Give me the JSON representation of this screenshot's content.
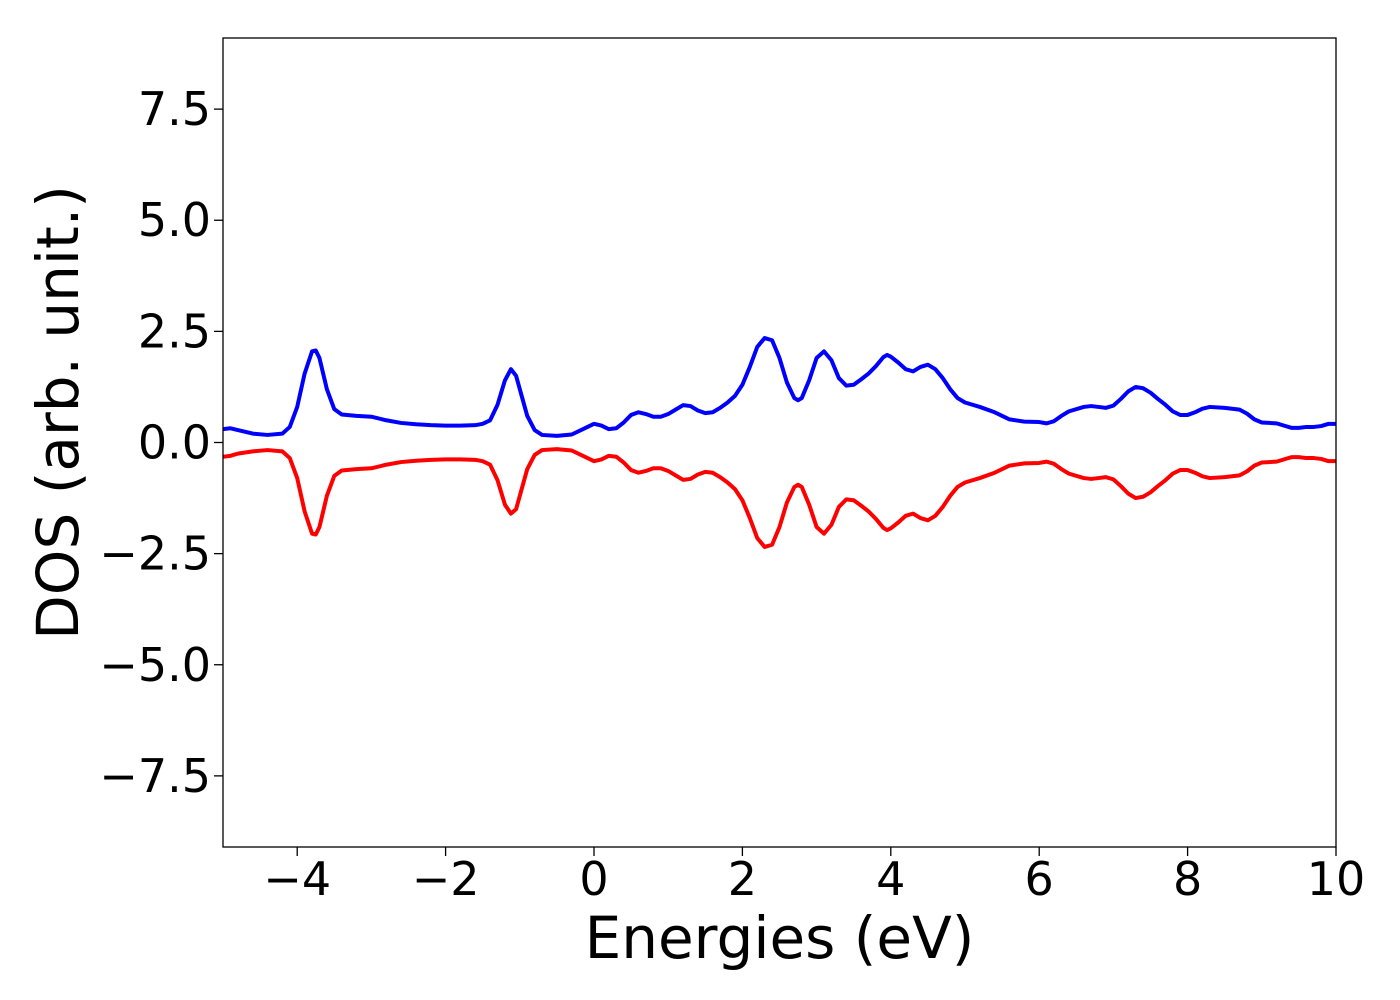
{
  "chart_data": {
    "type": "line",
    "title": "",
    "xlabel": "Energies (eV)",
    "ylabel": "DOS (arb. unit.)",
    "xlim": [
      -5,
      10
    ],
    "ylim": [
      -9.1,
      9.1
    ],
    "grid": false,
    "legend": "none",
    "x_ticks": [
      {
        "value": -4,
        "label": "−4"
      },
      {
        "value": -2,
        "label": "−2"
      },
      {
        "value": 0,
        "label": "0"
      },
      {
        "value": 2,
        "label": "2"
      },
      {
        "value": 4,
        "label": "4"
      },
      {
        "value": 6,
        "label": "6"
      },
      {
        "value": 8,
        "label": "8"
      },
      {
        "value": 10,
        "label": "10"
      }
    ],
    "y_ticks": [
      {
        "value": 7.5,
        "label": "7.5"
      },
      {
        "value": 5.0,
        "label": "5.0"
      },
      {
        "value": 2.5,
        "label": "2.5"
      },
      {
        "value": 0.0,
        "label": "0.0"
      },
      {
        "value": -2.5,
        "label": "−2.5"
      },
      {
        "value": -5.0,
        "label": "−5.0"
      },
      {
        "value": -7.5,
        "label": "−7.5"
      }
    ],
    "series": [
      {
        "color": "#0000ff",
        "points": [
          [
            -5.0,
            0.3
          ],
          [
            -4.9,
            0.32
          ],
          [
            -4.8,
            0.28
          ],
          [
            -4.6,
            0.2
          ],
          [
            -4.4,
            0.17
          ],
          [
            -4.2,
            0.2
          ],
          [
            -4.1,
            0.35
          ],
          [
            -4.0,
            0.8
          ],
          [
            -3.9,
            1.55
          ],
          [
            -3.8,
            2.05
          ],
          [
            -3.75,
            2.07
          ],
          [
            -3.7,
            1.9
          ],
          [
            -3.6,
            1.2
          ],
          [
            -3.5,
            0.75
          ],
          [
            -3.4,
            0.63
          ],
          [
            -3.2,
            0.6
          ],
          [
            -3.0,
            0.58
          ],
          [
            -2.8,
            0.5
          ],
          [
            -2.6,
            0.44
          ],
          [
            -2.4,
            0.41
          ],
          [
            -2.2,
            0.39
          ],
          [
            -2.0,
            0.38
          ],
          [
            -1.8,
            0.38
          ],
          [
            -1.6,
            0.39
          ],
          [
            -1.5,
            0.42
          ],
          [
            -1.4,
            0.5
          ],
          [
            -1.3,
            0.85
          ],
          [
            -1.2,
            1.4
          ],
          [
            -1.12,
            1.65
          ],
          [
            -1.05,
            1.5
          ],
          [
            -1.0,
            1.2
          ],
          [
            -0.9,
            0.6
          ],
          [
            -0.8,
            0.28
          ],
          [
            -0.7,
            0.17
          ],
          [
            -0.5,
            0.15
          ],
          [
            -0.3,
            0.18
          ],
          [
            -0.15,
            0.3
          ],
          [
            0.0,
            0.42
          ],
          [
            0.1,
            0.38
          ],
          [
            0.2,
            0.3
          ],
          [
            0.3,
            0.32
          ],
          [
            0.4,
            0.45
          ],
          [
            0.5,
            0.62
          ],
          [
            0.6,
            0.68
          ],
          [
            0.7,
            0.64
          ],
          [
            0.8,
            0.58
          ],
          [
            0.9,
            0.58
          ],
          [
            1.0,
            0.64
          ],
          [
            1.1,
            0.74
          ],
          [
            1.2,
            0.84
          ],
          [
            1.3,
            0.82
          ],
          [
            1.4,
            0.72
          ],
          [
            1.5,
            0.66
          ],
          [
            1.6,
            0.68
          ],
          [
            1.7,
            0.78
          ],
          [
            1.8,
            0.9
          ],
          [
            1.9,
            1.05
          ],
          [
            2.0,
            1.3
          ],
          [
            2.1,
            1.7
          ],
          [
            2.2,
            2.15
          ],
          [
            2.3,
            2.35
          ],
          [
            2.4,
            2.3
          ],
          [
            2.5,
            1.9
          ],
          [
            2.6,
            1.35
          ],
          [
            2.7,
            1.0
          ],
          [
            2.75,
            0.95
          ],
          [
            2.8,
            1.0
          ],
          [
            2.9,
            1.4
          ],
          [
            3.0,
            1.9
          ],
          [
            3.1,
            2.05
          ],
          [
            3.2,
            1.85
          ],
          [
            3.3,
            1.45
          ],
          [
            3.4,
            1.28
          ],
          [
            3.5,
            1.3
          ],
          [
            3.6,
            1.42
          ],
          [
            3.7,
            1.55
          ],
          [
            3.8,
            1.72
          ],
          [
            3.9,
            1.92
          ],
          [
            3.95,
            1.97
          ],
          [
            4.0,
            1.93
          ],
          [
            4.1,
            1.8
          ],
          [
            4.2,
            1.65
          ],
          [
            4.3,
            1.6
          ],
          [
            4.4,
            1.7
          ],
          [
            4.5,
            1.75
          ],
          [
            4.6,
            1.65
          ],
          [
            4.7,
            1.45
          ],
          [
            4.8,
            1.2
          ],
          [
            4.9,
            1.0
          ],
          [
            5.0,
            0.9
          ],
          [
            5.2,
            0.8
          ],
          [
            5.4,
            0.68
          ],
          [
            5.6,
            0.52
          ],
          [
            5.8,
            0.47
          ],
          [
            6.0,
            0.46
          ],
          [
            6.1,
            0.43
          ],
          [
            6.2,
            0.48
          ],
          [
            6.3,
            0.6
          ],
          [
            6.4,
            0.7
          ],
          [
            6.6,
            0.8
          ],
          [
            6.7,
            0.82
          ],
          [
            6.8,
            0.8
          ],
          [
            6.9,
            0.78
          ],
          [
            7.0,
            0.83
          ],
          [
            7.1,
            0.98
          ],
          [
            7.2,
            1.15
          ],
          [
            7.3,
            1.25
          ],
          [
            7.4,
            1.22
          ],
          [
            7.5,
            1.12
          ],
          [
            7.6,
            0.98
          ],
          [
            7.7,
            0.85
          ],
          [
            7.8,
            0.7
          ],
          [
            7.9,
            0.62
          ],
          [
            8.0,
            0.62
          ],
          [
            8.1,
            0.68
          ],
          [
            8.2,
            0.76
          ],
          [
            8.3,
            0.8
          ],
          [
            8.5,
            0.78
          ],
          [
            8.7,
            0.74
          ],
          [
            8.8,
            0.65
          ],
          [
            8.9,
            0.52
          ],
          [
            9.0,
            0.45
          ],
          [
            9.2,
            0.43
          ],
          [
            9.3,
            0.38
          ],
          [
            9.4,
            0.33
          ],
          [
            9.5,
            0.33
          ],
          [
            9.6,
            0.35
          ],
          [
            9.7,
            0.35
          ],
          [
            9.8,
            0.37
          ],
          [
            9.9,
            0.42
          ],
          [
            10.0,
            0.42
          ]
        ]
      },
      {
        "color": "#ff0000",
        "points": [
          [
            -5.0,
            -0.32
          ],
          [
            -4.9,
            -0.3
          ],
          [
            -4.8,
            -0.25
          ],
          [
            -4.6,
            -0.2
          ],
          [
            -4.4,
            -0.17
          ],
          [
            -4.2,
            -0.2
          ],
          [
            -4.1,
            -0.35
          ],
          [
            -4.0,
            -0.8
          ],
          [
            -3.9,
            -1.55
          ],
          [
            -3.8,
            -2.05
          ],
          [
            -3.75,
            -2.07
          ],
          [
            -3.7,
            -1.9
          ],
          [
            -3.6,
            -1.2
          ],
          [
            -3.5,
            -0.75
          ],
          [
            -3.4,
            -0.63
          ],
          [
            -3.2,
            -0.6
          ],
          [
            -3.0,
            -0.58
          ],
          [
            -2.8,
            -0.5
          ],
          [
            -2.6,
            -0.44
          ],
          [
            -2.4,
            -0.41
          ],
          [
            -2.2,
            -0.39
          ],
          [
            -2.0,
            -0.38
          ],
          [
            -1.8,
            -0.38
          ],
          [
            -1.6,
            -0.39
          ],
          [
            -1.5,
            -0.42
          ],
          [
            -1.4,
            -0.5
          ],
          [
            -1.3,
            -0.85
          ],
          [
            -1.2,
            -1.4
          ],
          [
            -1.12,
            -1.6
          ],
          [
            -1.05,
            -1.5
          ],
          [
            -1.0,
            -1.2
          ],
          [
            -0.9,
            -0.6
          ],
          [
            -0.8,
            -0.28
          ],
          [
            -0.7,
            -0.17
          ],
          [
            -0.5,
            -0.15
          ],
          [
            -0.3,
            -0.18
          ],
          [
            -0.15,
            -0.3
          ],
          [
            0.0,
            -0.42
          ],
          [
            0.1,
            -0.38
          ],
          [
            0.2,
            -0.3
          ],
          [
            0.3,
            -0.32
          ],
          [
            0.4,
            -0.45
          ],
          [
            0.5,
            -0.62
          ],
          [
            0.6,
            -0.68
          ],
          [
            0.7,
            -0.64
          ],
          [
            0.8,
            -0.58
          ],
          [
            0.9,
            -0.58
          ],
          [
            1.0,
            -0.64
          ],
          [
            1.1,
            -0.74
          ],
          [
            1.2,
            -0.84
          ],
          [
            1.3,
            -0.82
          ],
          [
            1.4,
            -0.72
          ],
          [
            1.5,
            -0.66
          ],
          [
            1.6,
            -0.68
          ],
          [
            1.7,
            -0.78
          ],
          [
            1.8,
            -0.9
          ],
          [
            1.9,
            -1.05
          ],
          [
            2.0,
            -1.3
          ],
          [
            2.1,
            -1.7
          ],
          [
            2.2,
            -2.15
          ],
          [
            2.3,
            -2.35
          ],
          [
            2.4,
            -2.3
          ],
          [
            2.5,
            -1.9
          ],
          [
            2.6,
            -1.35
          ],
          [
            2.7,
            -1.0
          ],
          [
            2.75,
            -0.95
          ],
          [
            2.8,
            -1.0
          ],
          [
            2.9,
            -1.4
          ],
          [
            3.0,
            -1.9
          ],
          [
            3.1,
            -2.05
          ],
          [
            3.2,
            -1.85
          ],
          [
            3.3,
            -1.45
          ],
          [
            3.4,
            -1.28
          ],
          [
            3.5,
            -1.3
          ],
          [
            3.6,
            -1.42
          ],
          [
            3.7,
            -1.55
          ],
          [
            3.8,
            -1.72
          ],
          [
            3.9,
            -1.92
          ],
          [
            3.95,
            -1.97
          ],
          [
            4.0,
            -1.93
          ],
          [
            4.1,
            -1.8
          ],
          [
            4.2,
            -1.65
          ],
          [
            4.3,
            -1.6
          ],
          [
            4.4,
            -1.7
          ],
          [
            4.5,
            -1.75
          ],
          [
            4.6,
            -1.65
          ],
          [
            4.7,
            -1.45
          ],
          [
            4.8,
            -1.2
          ],
          [
            4.9,
            -1.0
          ],
          [
            5.0,
            -0.9
          ],
          [
            5.2,
            -0.8
          ],
          [
            5.4,
            -0.68
          ],
          [
            5.6,
            -0.52
          ],
          [
            5.8,
            -0.47
          ],
          [
            6.0,
            -0.46
          ],
          [
            6.1,
            -0.43
          ],
          [
            6.2,
            -0.48
          ],
          [
            6.3,
            -0.6
          ],
          [
            6.4,
            -0.7
          ],
          [
            6.6,
            -0.8
          ],
          [
            6.7,
            -0.82
          ],
          [
            6.8,
            -0.8
          ],
          [
            6.9,
            -0.78
          ],
          [
            7.0,
            -0.83
          ],
          [
            7.1,
            -0.98
          ],
          [
            7.2,
            -1.15
          ],
          [
            7.3,
            -1.25
          ],
          [
            7.4,
            -1.22
          ],
          [
            7.5,
            -1.12
          ],
          [
            7.6,
            -0.98
          ],
          [
            7.7,
            -0.85
          ],
          [
            7.8,
            -0.7
          ],
          [
            7.9,
            -0.62
          ],
          [
            8.0,
            -0.62
          ],
          [
            8.1,
            -0.68
          ],
          [
            8.2,
            -0.76
          ],
          [
            8.3,
            -0.8
          ],
          [
            8.5,
            -0.78
          ],
          [
            8.7,
            -0.74
          ],
          [
            8.8,
            -0.65
          ],
          [
            8.9,
            -0.52
          ],
          [
            9.0,
            -0.45
          ],
          [
            9.2,
            -0.43
          ],
          [
            9.3,
            -0.38
          ],
          [
            9.4,
            -0.33
          ],
          [
            9.5,
            -0.33
          ],
          [
            9.6,
            -0.35
          ],
          [
            9.7,
            -0.35
          ],
          [
            9.8,
            -0.37
          ],
          [
            9.9,
            -0.42
          ],
          [
            10.0,
            -0.42
          ]
        ]
      }
    ]
  }
}
